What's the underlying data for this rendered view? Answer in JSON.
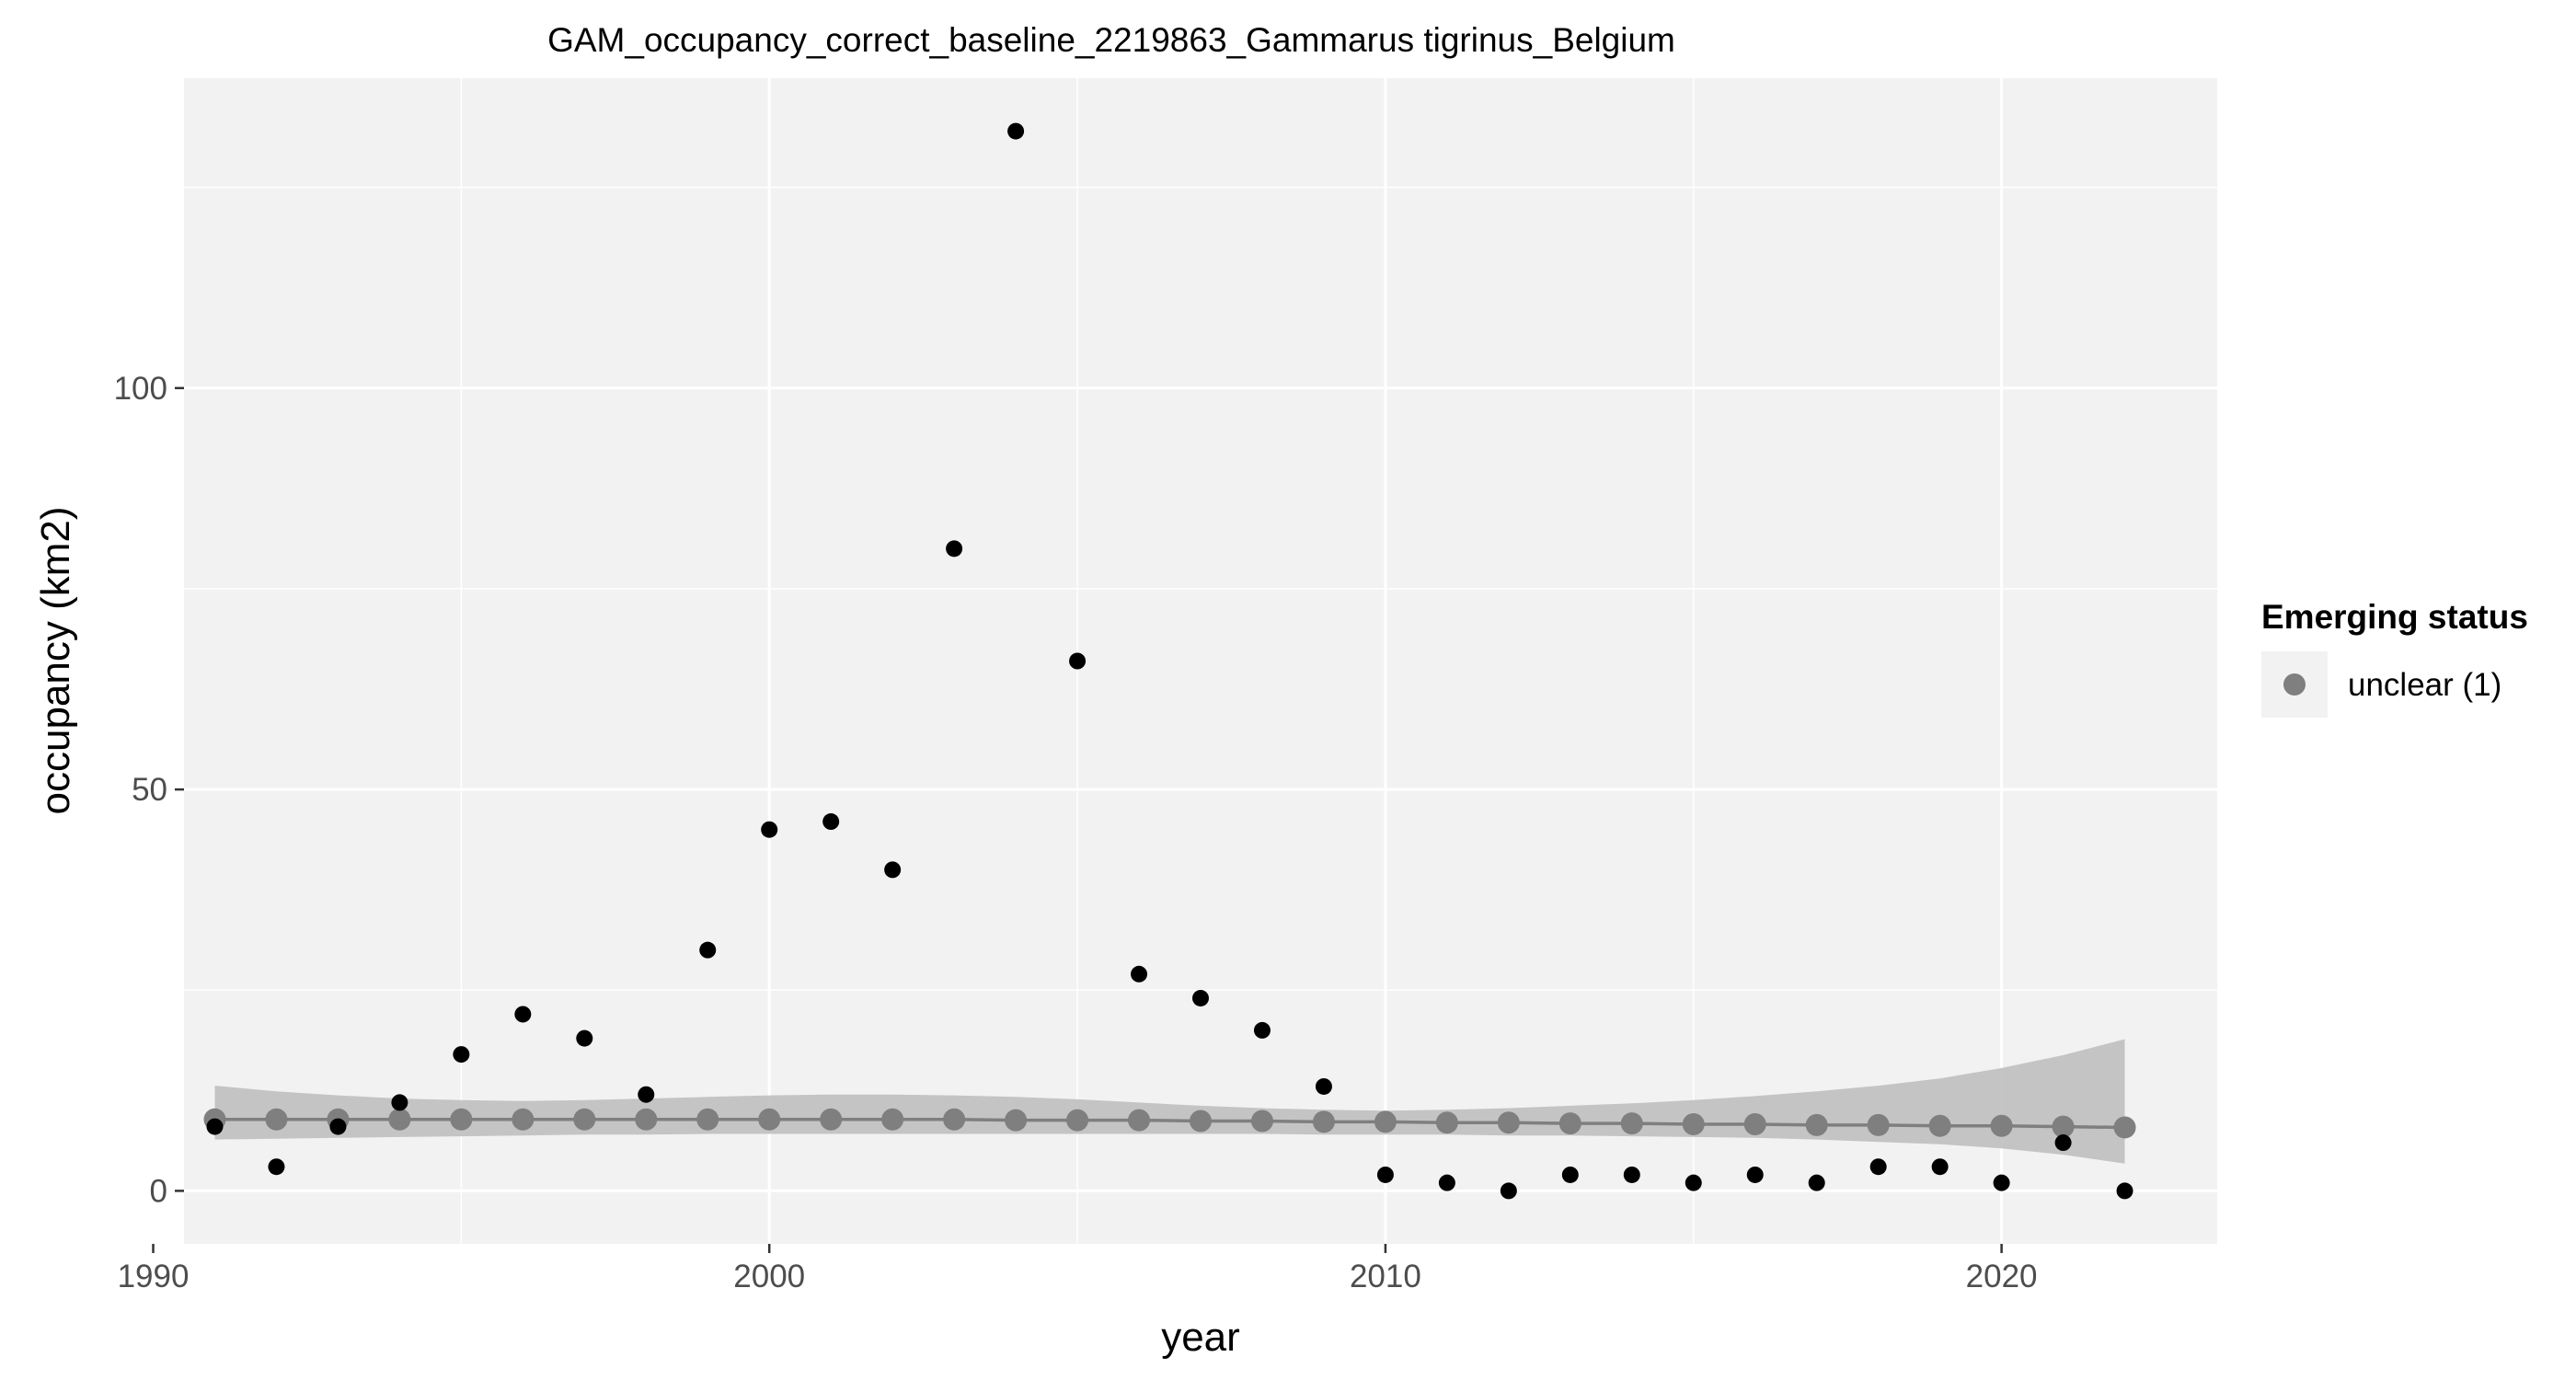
{
  "chart_data": {
    "type": "scatter",
    "title": "GAM_occupancy_correct_baseline_2219863_Gammarus tigrinus_Belgium",
    "xlabel": "year",
    "ylabel": "occupancy (km2)",
    "xlim": [
      1990.5,
      2023.5
    ],
    "ylim": [
      -6.6,
      138.6
    ],
    "x_ticks": [
      1990,
      2000,
      2010,
      2020
    ],
    "y_ticks": [
      0,
      50,
      100
    ],
    "grid": true,
    "legend": {
      "title": "Emerging status",
      "position": "right",
      "entries": [
        {
          "label": "unclear (1)",
          "color": "#7f7f7f"
        }
      ]
    },
    "series": [
      {
        "kind": "observed",
        "color": "#000000",
        "x": [
          1991,
          1992,
          1993,
          1994,
          1995,
          1996,
          1997,
          1998,
          1999,
          2000,
          2001,
          2002,
          2003,
          2004,
          2005,
          2006,
          2007,
          2008,
          2009,
          2010,
          2011,
          2012,
          2013,
          2014,
          2015,
          2016,
          2017,
          2018,
          2019,
          2020,
          2021,
          2022
        ],
        "y": [
          8,
          3,
          8,
          11,
          17,
          22,
          19,
          12,
          30,
          45,
          46,
          40,
          80,
          132,
          66,
          27,
          24,
          20,
          13,
          2,
          1,
          0,
          2,
          2,
          1,
          2,
          1,
          3,
          3,
          1,
          6,
          0
        ]
      },
      {
        "kind": "fitted",
        "name": "unclear (1)",
        "color": "#7f7f7f",
        "x": [
          1991,
          1992,
          1993,
          1994,
          1995,
          1996,
          1997,
          1998,
          1999,
          2000,
          2001,
          2002,
          2003,
          2004,
          2005,
          2006,
          2007,
          2008,
          2009,
          2010,
          2011,
          2012,
          2013,
          2014,
          2015,
          2016,
          2017,
          2018,
          2019,
          2020,
          2021,
          2022
        ],
        "y": [
          8.9,
          8.9,
          8.9,
          8.9,
          8.9,
          8.9,
          8.9,
          8.9,
          8.9,
          8.9,
          8.9,
          8.9,
          8.9,
          8.8,
          8.8,
          8.8,
          8.7,
          8.7,
          8.6,
          8.6,
          8.5,
          8.5,
          8.4,
          8.4,
          8.3,
          8.3,
          8.2,
          8.2,
          8.1,
          8.1,
          8.0,
          7.9
        ],
        "lower": [
          6.4,
          6.5,
          6.6,
          6.7,
          6.8,
          6.9,
          7.0,
          7.0,
          7.1,
          7.1,
          7.1,
          7.1,
          7.1,
          7.1,
          7.1,
          7.1,
          7.1,
          7.1,
          7.0,
          7.0,
          7.0,
          6.9,
          6.9,
          6.8,
          6.7,
          6.6,
          6.4,
          6.1,
          5.8,
          5.3,
          4.5,
          3.4
        ],
        "upper": [
          13.1,
          12.4,
          11.9,
          11.5,
          11.3,
          11.2,
          11.3,
          11.5,
          11.7,
          11.9,
          12.0,
          12.0,
          11.9,
          11.7,
          11.4,
          11.0,
          10.6,
          10.3,
          10.1,
          10.0,
          10.1,
          10.3,
          10.6,
          10.9,
          11.3,
          11.8,
          12.4,
          13.1,
          14.0,
          15.3,
          16.9,
          18.9
        ]
      }
    ]
  }
}
